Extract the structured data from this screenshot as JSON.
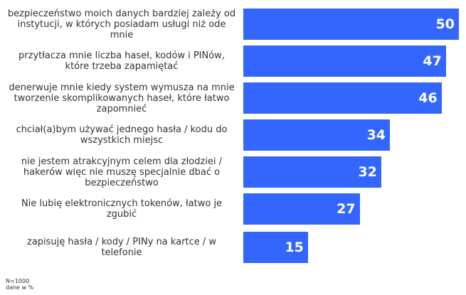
{
  "chart_data": {
    "type": "bar",
    "orientation": "horizontal",
    "categories": [
      "bezpieczeństwo moich danych bardziej zależy od instytucji, w których posiadam usługi niż ode mnie",
      "przytłacza mnie liczba haseł, kodów i PINów, które trzeba zapamiętać",
      "denerwuje mnie kiedy system wymusza na mnie tworzenie skomplikowanych haseł, które łatwo zapomnieć",
      "chciał(a)bym używać jednego hasła / kodu do wszystkich miejsc",
      "nie jestem atrakcyjnym celem dla złodziei / hakerów więc nie muszę specjalnie dbać o bezpieczeństwo",
      "Nie lubię elektronicznych tokenów, łatwo je zgubić",
      "zapisuję hasła / kody / PINy na kartce / w telefonie"
    ],
    "values": [
      50,
      47,
      46,
      34,
      32,
      27,
      15
    ],
    "value_labels": [
      "50",
      "47",
      "46",
      "34",
      "32",
      "27",
      "15"
    ],
    "xlim": [
      0,
      50
    ],
    "grid": false,
    "bar_color": "#3366ff"
  },
  "footnote": {
    "sample": "N=1000",
    "unit": "dane w %"
  }
}
